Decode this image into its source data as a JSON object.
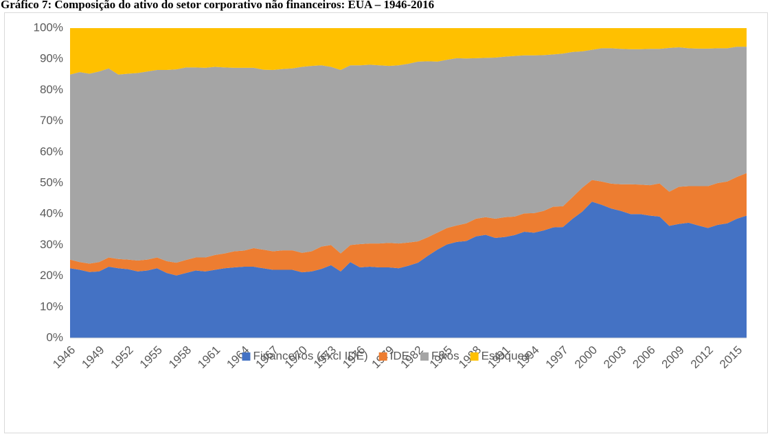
{
  "chart_data": {
    "type": "stacked_area_100",
    "title": "Gráfico 7: Composição do ativo do setor corporativo não financeiros: EUA – 1946-2016",
    "categories": [
      "1946",
      null,
      null,
      "1949",
      null,
      null,
      "1952",
      null,
      null,
      "1955",
      null,
      null,
      "1958",
      null,
      null,
      "1961",
      null,
      null,
      "1964",
      null,
      null,
      "1967",
      null,
      null,
      "1970",
      null,
      null,
      "1973",
      null,
      null,
      "1976",
      null,
      null,
      "1979",
      null,
      null,
      "1982",
      null,
      null,
      "1985",
      null,
      null,
      "1988",
      null,
      null,
      "1991",
      null,
      null,
      "1994",
      null,
      null,
      "1997",
      null,
      null,
      "2000",
      null,
      null,
      "2003",
      null,
      null,
      "2006",
      null,
      null,
      "2009",
      null,
      null,
      "2012",
      null,
      null,
      "2015",
      null
    ],
    "series": [
      {
        "name": "Financeiros (excl IDE)",
        "color": "#4472c4",
        "values": [
          22.5,
          22,
          21.3,
          21.5,
          23,
          22.5,
          22.2,
          21.5,
          21.8,
          22.5,
          21,
          20.2,
          21,
          21.8,
          21.5,
          22,
          22.5,
          22.8,
          23,
          23,
          22.5,
          22,
          22,
          22,
          21.2,
          21.5,
          22.3,
          23.5,
          21.5,
          24.5,
          22.8,
          23,
          22.8,
          22.8,
          22.5,
          23.3,
          24.3,
          26.5,
          28.5,
          30.2,
          31,
          31.3,
          32.8,
          33.3,
          32.3,
          32.6,
          33.2,
          34.3,
          34,
          34.7,
          35.7,
          35.8,
          38.5,
          40.8,
          44,
          43,
          41.8,
          41,
          40,
          40,
          39.5,
          39.2,
          36.2,
          36.8,
          37.2,
          36.3,
          35.5,
          36.5,
          37,
          38.5,
          39.5
        ]
      },
      {
        "name": "IDE",
        "color": "#ed7d31",
        "values": [
          2.8,
          2.5,
          2.7,
          3,
          3,
          3,
          3.1,
          3.5,
          3.5,
          3.5,
          3.8,
          4.1,
          4.2,
          4.2,
          4.5,
          4.8,
          4.8,
          5.2,
          5.2,
          6,
          6,
          6,
          6.3,
          6.3,
          6.3,
          6.5,
          7.2,
          6.5,
          5.8,
          5.5,
          7.5,
          7.5,
          7.7,
          7.9,
          8,
          7.5,
          6.9,
          6,
          5.5,
          5.3,
          5.3,
          5.7,
          5.7,
          5.7,
          6.2,
          6.4,
          6,
          5.9,
          6.3,
          6.3,
          6.7,
          6.7,
          7,
          7.7,
          7,
          7.5,
          8,
          8.6,
          9.6,
          9.5,
          9.8,
          10.7,
          11,
          12,
          11.8,
          12.7,
          13.5,
          13.5,
          13.5,
          13.5,
          13.7
        ]
      },
      {
        "name": "Fixos",
        "color": "#a5a5a5",
        "values": [
          59.7,
          61.3,
          61.3,
          61.5,
          61,
          59.5,
          60,
          60.5,
          60.7,
          60.5,
          61.7,
          62.4,
          62.1,
          61.3,
          61.2,
          60.7,
          60,
          59.2,
          59,
          58.2,
          58.1,
          58.5,
          58.5,
          58.7,
          60,
          59.8,
          58.5,
          57.5,
          59.2,
          58,
          57.7,
          57.7,
          57.5,
          57.1,
          57.5,
          57.7,
          58,
          56.8,
          55.2,
          54.3,
          54,
          53.2,
          51.8,
          51.4,
          52,
          51.8,
          51.8,
          51,
          50.9,
          50.3,
          49.1,
          49.3,
          46.8,
          44,
          42,
          43,
          43.7,
          43.7,
          43.6,
          43.7,
          44,
          43.4,
          46.4,
          45,
          44.5,
          44.4,
          44.4,
          43.5,
          43,
          42,
          40.8
        ]
      },
      {
        "name": "Estoques",
        "color": "#ffc000",
        "values": [
          15,
          14.2,
          14.7,
          14,
          13,
          15,
          14.7,
          14.5,
          14,
          13.5,
          13.5,
          13.3,
          12.7,
          12.7,
          12.8,
          12.5,
          12.7,
          12.8,
          12.8,
          12.8,
          13.4,
          13.5,
          13.2,
          13,
          12.5,
          12.2,
          12,
          12.5,
          13.5,
          12,
          12,
          11.8,
          12,
          12.2,
          12,
          11.5,
          10.8,
          10.7,
          10.8,
          10.2,
          9.7,
          9.8,
          9.7,
          9.6,
          9.5,
          9.2,
          9,
          8.8,
          8.8,
          8.7,
          8.5,
          8.2,
          7.7,
          7.5,
          7,
          6.5,
          6.5,
          6.7,
          6.8,
          6.8,
          6.7,
          6.7,
          6.4,
          6.2,
          6.5,
          6.6,
          6.6,
          6.5,
          6.5,
          6,
          6
        ]
      }
    ],
    "ylim": [
      0,
      100
    ],
    "yticks": [
      {
        "value": 0,
        "label": "0%"
      },
      {
        "value": 10,
        "label": "10%"
      },
      {
        "value": 20,
        "label": "20%"
      },
      {
        "value": 30,
        "label": "30%"
      },
      {
        "value": 40,
        "label": "40%"
      },
      {
        "value": 50,
        "label": "50%"
      },
      {
        "value": 60,
        "label": "60%"
      },
      {
        "value": 70,
        "label": "70%"
      },
      {
        "value": 80,
        "label": "80%"
      },
      {
        "value": 90,
        "label": "90%"
      },
      {
        "value": 100,
        "label": "100%"
      }
    ],
    "legend": "bottom"
  }
}
